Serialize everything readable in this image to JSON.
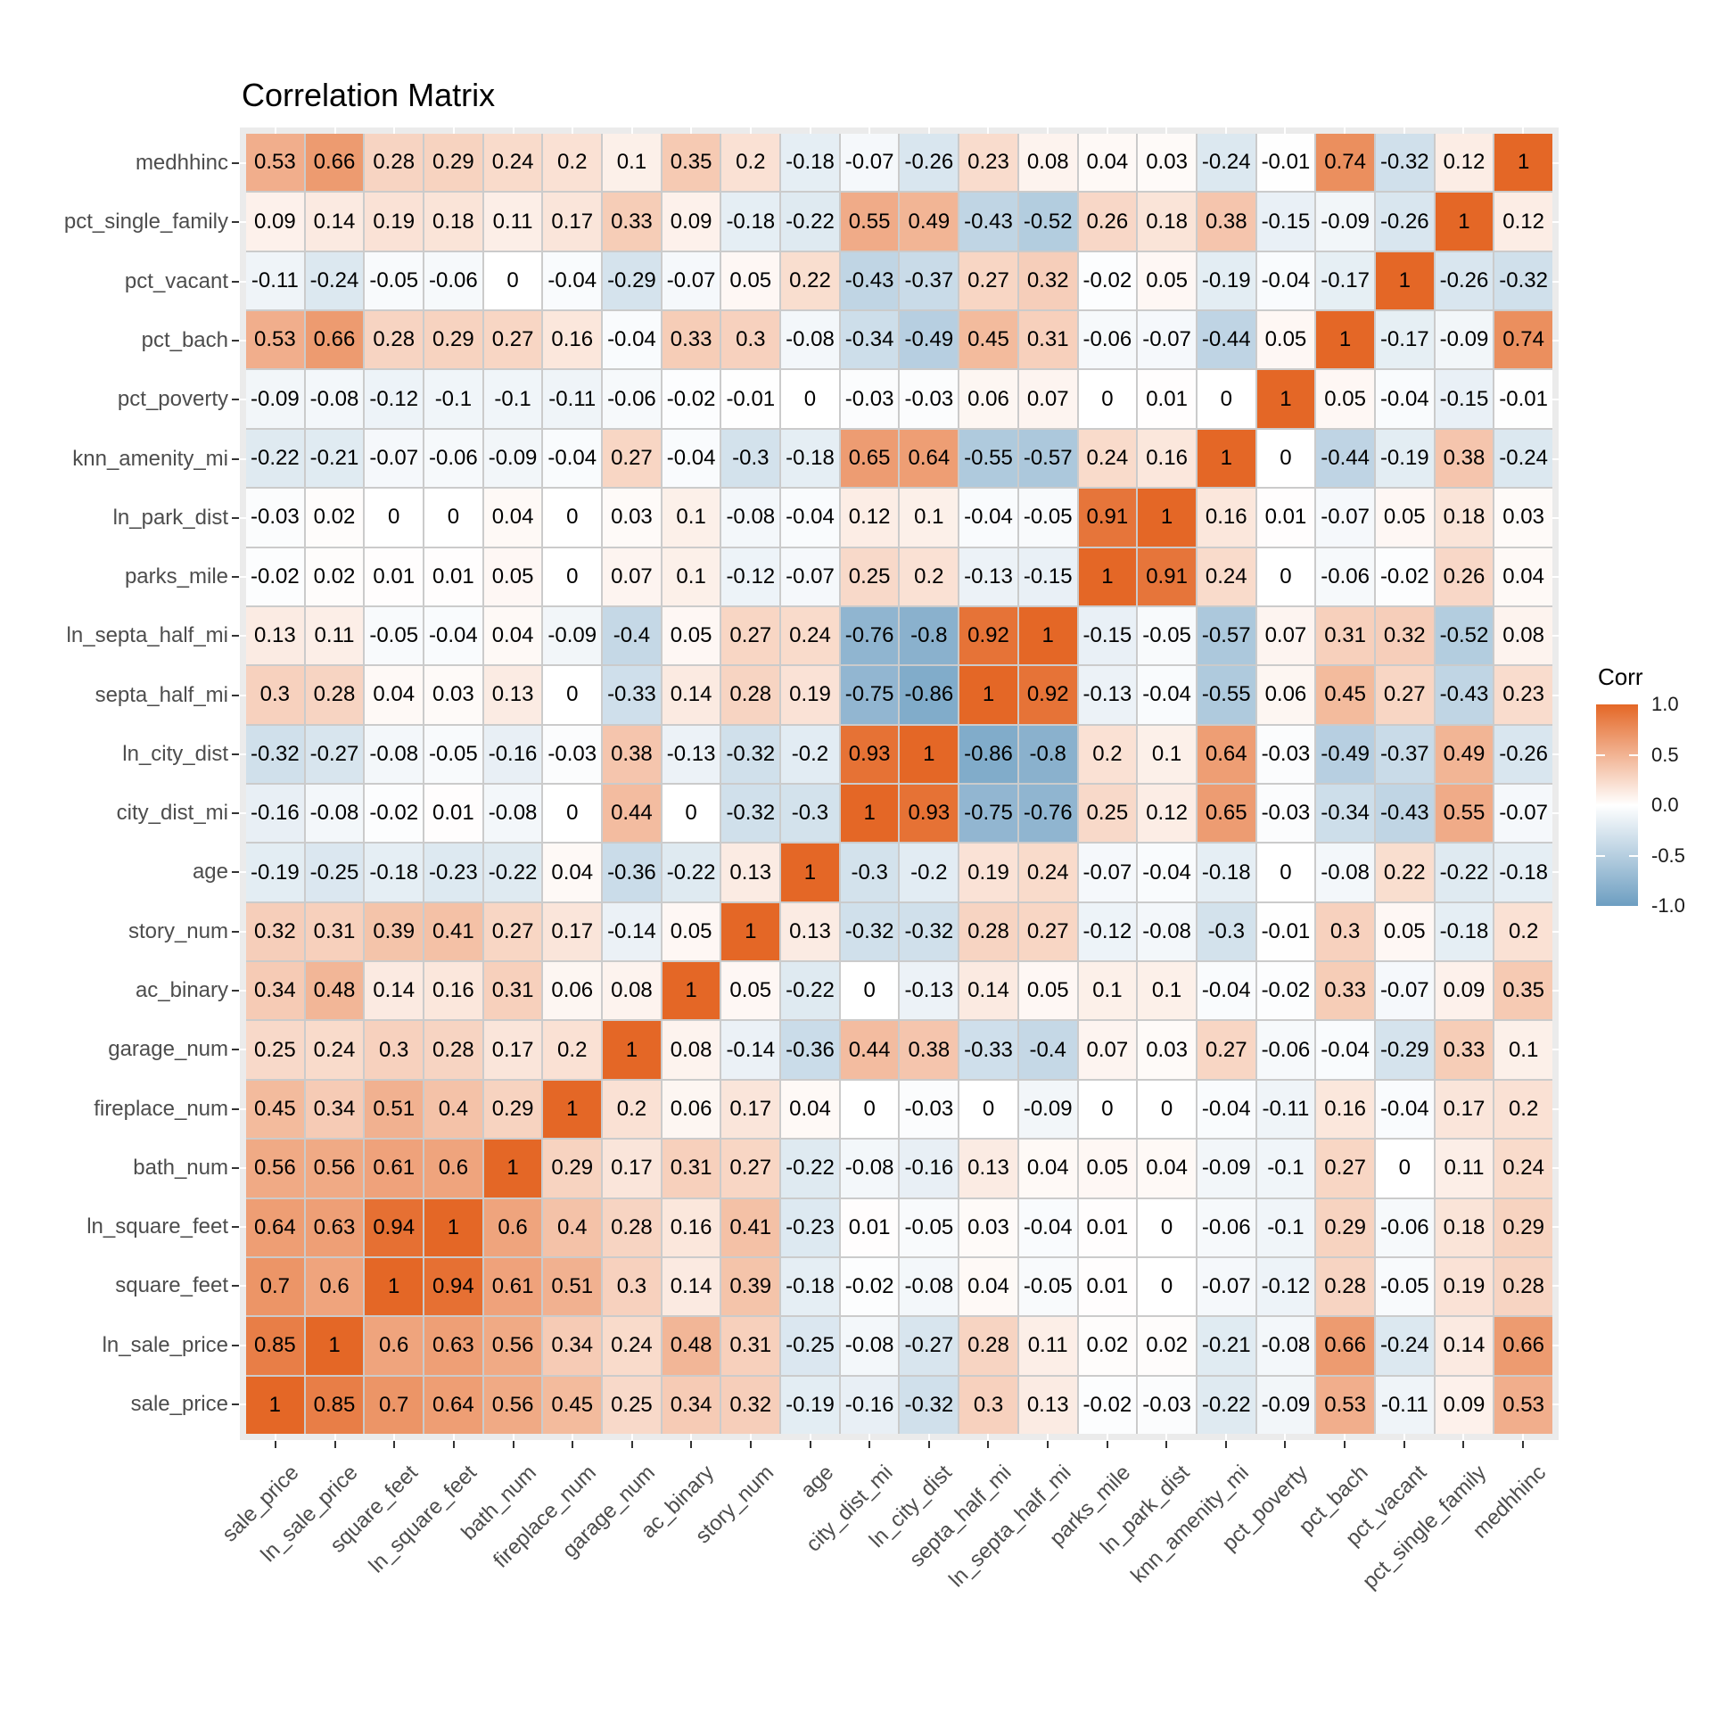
{
  "title": "Correlation Matrix",
  "legend": {
    "title": "Corr",
    "tick_labels": [
      "1.0",
      "0.5",
      "0.0",
      "-0.5",
      "-1.0"
    ],
    "high_color": "#E46726",
    "mid_color": "#FFFFFF",
    "low_color": "#6D9EC1",
    "position": "right"
  },
  "chart_data": {
    "type": "heatmap",
    "title": "Correlation Matrix",
    "x_categories": [
      "sale_price",
      "ln_sale_price",
      "square_feet",
      "ln_square_feet",
      "bath_num",
      "fireplace_num",
      "garage_num",
      "ac_binary",
      "story_num",
      "age",
      "city_dist_mi",
      "ln_city_dist",
      "septa_half_mi",
      "ln_septa_half_mi",
      "parks_mile",
      "ln_park_dist",
      "knn_amenity_mi",
      "pct_poverty",
      "pct_bach",
      "pct_vacant",
      "pct_single_family",
      "medhhinc"
    ],
    "y_categories_top_to_bottom": [
      "medhhinc",
      "pct_single_family",
      "pct_vacant",
      "pct_bach",
      "pct_poverty",
      "knn_amenity_mi",
      "ln_park_dist",
      "parks_mile",
      "ln_septa_half_mi",
      "septa_half_mi",
      "ln_city_dist",
      "city_dist_mi",
      "age",
      "story_num",
      "ac_binary",
      "garage_num",
      "fireplace_num",
      "bath_num",
      "ln_square_feet",
      "square_feet",
      "ln_sale_price",
      "sale_price"
    ],
    "rows_top_to_bottom": [
      [
        0.53,
        0.66,
        0.28,
        0.29,
        0.24,
        0.2,
        0.1,
        0.35,
        0.2,
        -0.18,
        -0.07,
        -0.26,
        0.23,
        0.08,
        0.04,
        0.03,
        -0.24,
        -0.01,
        0.74,
        -0.32,
        0.12,
        1
      ],
      [
        0.09,
        0.14,
        0.19,
        0.18,
        0.11,
        0.17,
        0.33,
        0.09,
        -0.18,
        -0.22,
        0.55,
        0.49,
        -0.43,
        -0.52,
        0.26,
        0.18,
        0.38,
        -0.15,
        -0.09,
        -0.26,
        1,
        0.12
      ],
      [
        -0.11,
        -0.24,
        -0.05,
        -0.06,
        0,
        -0.04,
        -0.29,
        -0.07,
        0.05,
        0.22,
        -0.43,
        -0.37,
        0.27,
        0.32,
        -0.02,
        0.05,
        -0.19,
        -0.04,
        -0.17,
        1,
        -0.26,
        -0.32
      ],
      [
        0.53,
        0.66,
        0.28,
        0.29,
        0.27,
        0.16,
        -0.04,
        0.33,
        0.3,
        -0.08,
        -0.34,
        -0.49,
        0.45,
        0.31,
        -0.06,
        -0.07,
        -0.44,
        0.05,
        1,
        -0.17,
        -0.09,
        0.74
      ],
      [
        -0.09,
        -0.08,
        -0.12,
        -0.1,
        -0.1,
        -0.11,
        -0.06,
        -0.02,
        -0.01,
        0,
        -0.03,
        -0.03,
        0.06,
        0.07,
        0,
        0.01,
        0,
        1,
        0.05,
        -0.04,
        -0.15,
        -0.01
      ],
      [
        -0.22,
        -0.21,
        -0.07,
        -0.06,
        -0.09,
        -0.04,
        0.27,
        -0.04,
        -0.3,
        -0.18,
        0.65,
        0.64,
        -0.55,
        -0.57,
        0.24,
        0.16,
        1,
        0,
        -0.44,
        -0.19,
        0.38,
        -0.24
      ],
      [
        -0.03,
        0.02,
        0,
        0,
        0.04,
        0,
        0.03,
        0.1,
        -0.08,
        -0.04,
        0.12,
        0.1,
        -0.04,
        -0.05,
        0.91,
        1,
        0.16,
        0.01,
        -0.07,
        0.05,
        0.18,
        0.03
      ],
      [
        -0.02,
        0.02,
        0.01,
        0.01,
        0.05,
        0,
        0.07,
        0.1,
        -0.12,
        -0.07,
        0.25,
        0.2,
        -0.13,
        -0.15,
        1,
        0.91,
        0.24,
        0,
        -0.06,
        -0.02,
        0.26,
        0.04
      ],
      [
        0.13,
        0.11,
        -0.05,
        -0.04,
        0.04,
        -0.09,
        -0.4,
        0.05,
        0.27,
        0.24,
        -0.76,
        -0.8,
        0.92,
        1,
        -0.15,
        -0.05,
        -0.57,
        0.07,
        0.31,
        0.32,
        -0.52,
        0.08
      ],
      [
        0.3,
        0.28,
        0.04,
        0.03,
        0.13,
        0,
        -0.33,
        0.14,
        0.28,
        0.19,
        -0.75,
        -0.86,
        1,
        0.92,
        -0.13,
        -0.04,
        -0.55,
        0.06,
        0.45,
        0.27,
        -0.43,
        0.23
      ],
      [
        -0.32,
        -0.27,
        -0.08,
        -0.05,
        -0.16,
        -0.03,
        0.38,
        -0.13,
        -0.32,
        -0.2,
        0.93,
        1,
        -0.86,
        -0.8,
        0.2,
        0.1,
        0.64,
        -0.03,
        -0.49,
        -0.37,
        0.49,
        -0.26
      ],
      [
        -0.16,
        -0.08,
        -0.02,
        0.01,
        -0.08,
        0,
        0.44,
        0,
        -0.32,
        -0.3,
        1,
        0.93,
        -0.75,
        -0.76,
        0.25,
        0.12,
        0.65,
        -0.03,
        -0.34,
        -0.43,
        0.55,
        -0.07
      ],
      [
        -0.19,
        -0.25,
        -0.18,
        -0.23,
        -0.22,
        0.04,
        -0.36,
        -0.22,
        0.13,
        1,
        -0.3,
        -0.2,
        0.19,
        0.24,
        -0.07,
        -0.04,
        -0.18,
        0,
        -0.08,
        0.22,
        -0.22,
        -0.18
      ],
      [
        0.32,
        0.31,
        0.39,
        0.41,
        0.27,
        0.17,
        -0.14,
        0.05,
        1,
        0.13,
        -0.32,
        -0.32,
        0.28,
        0.27,
        -0.12,
        -0.08,
        -0.3,
        -0.01,
        0.3,
        0.05,
        -0.18,
        0.2
      ],
      [
        0.34,
        0.48,
        0.14,
        0.16,
        0.31,
        0.06,
        0.08,
        1,
        0.05,
        -0.22,
        0,
        -0.13,
        0.14,
        0.05,
        0.1,
        0.1,
        -0.04,
        -0.02,
        0.33,
        -0.07,
        0.09,
        0.35
      ],
      [
        0.25,
        0.24,
        0.3,
        0.28,
        0.17,
        0.2,
        1,
        0.08,
        -0.14,
        -0.36,
        0.44,
        0.38,
        -0.33,
        -0.4,
        0.07,
        0.03,
        0.27,
        -0.06,
        -0.04,
        -0.29,
        0.33,
        0.1
      ],
      [
        0.45,
        0.34,
        0.51,
        0.4,
        0.29,
        1,
        0.2,
        0.06,
        0.17,
        0.04,
        0,
        -0.03,
        0,
        -0.09,
        0,
        0,
        -0.04,
        -0.11,
        0.16,
        -0.04,
        0.17,
        0.2
      ],
      [
        0.56,
        0.56,
        0.61,
        0.6,
        1,
        0.29,
        0.17,
        0.31,
        0.27,
        -0.22,
        -0.08,
        -0.16,
        0.13,
        0.04,
        0.05,
        0.04,
        -0.09,
        -0.1,
        0.27,
        0,
        0.11,
        0.24
      ],
      [
        0.64,
        0.63,
        0.94,
        1,
        0.6,
        0.4,
        0.28,
        0.16,
        0.41,
        -0.23,
        0.01,
        -0.05,
        0.03,
        -0.04,
        0.01,
        0,
        -0.06,
        -0.1,
        0.29,
        -0.06,
        0.18,
        0.29
      ],
      [
        0.7,
        0.6,
        1,
        0.94,
        0.61,
        0.51,
        0.3,
        0.14,
        0.39,
        -0.18,
        -0.02,
        -0.08,
        0.04,
        -0.05,
        0.01,
        0,
        -0.07,
        -0.12,
        0.28,
        -0.05,
        0.19,
        0.28
      ],
      [
        0.85,
        1,
        0.6,
        0.63,
        0.56,
        0.34,
        0.24,
        0.48,
        0.31,
        -0.25,
        -0.08,
        -0.27,
        0.28,
        0.11,
        0.02,
        0.02,
        -0.21,
        -0.08,
        0.66,
        -0.24,
        0.14,
        0.66
      ],
      [
        1,
        0.85,
        0.7,
        0.64,
        0.56,
        0.45,
        0.25,
        0.34,
        0.32,
        -0.19,
        -0.16,
        -0.32,
        0.3,
        0.13,
        -0.02,
        -0.03,
        -0.22,
        -0.09,
        0.53,
        -0.11,
        0.09,
        0.53
      ]
    ],
    "value_range": [
      -1,
      1
    ],
    "x_tick_angle_deg": 45,
    "grid": "on",
    "legend_position": "right"
  }
}
